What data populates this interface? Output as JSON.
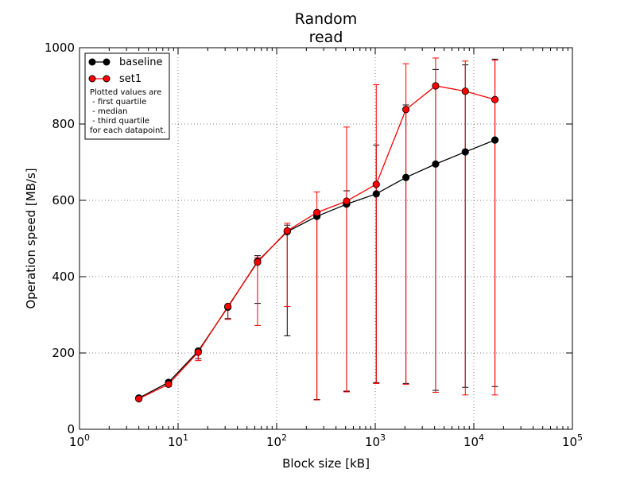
{
  "chart_data": {
    "type": "line",
    "title_lines": [
      "Random",
      "read"
    ],
    "xlabel": "Block size [kB]",
    "ylabel": "Operation speed [MB/s]",
    "x_scale": "log",
    "xlim": [
      1,
      100000
    ],
    "ylim": [
      0,
      1000
    ],
    "x_ticks": [
      {
        "value": 1,
        "base": "10",
        "exp": "0"
      },
      {
        "value": 10,
        "base": "10",
        "exp": "1"
      },
      {
        "value": 100,
        "base": "10",
        "exp": "2"
      },
      {
        "value": 1000,
        "base": "10",
        "exp": "3"
      },
      {
        "value": 10000,
        "base": "10",
        "exp": "4"
      },
      {
        "value": 100000,
        "base": "10",
        "exp": "5"
      }
    ],
    "y_ticks": [
      0,
      200,
      400,
      600,
      800,
      1000
    ],
    "grid": true,
    "legend_position": "top-left",
    "series": [
      {
        "name": "baseline",
        "color": "#000000",
        "points": [
          {
            "x": 4,
            "y": 82,
            "low": 78,
            "high": 86
          },
          {
            "x": 8,
            "y": 123,
            "low": 115,
            "high": 128
          },
          {
            "x": 16,
            "y": 205,
            "low": 185,
            "high": 210
          },
          {
            "x": 32,
            "y": 320,
            "low": 290,
            "high": 325
          },
          {
            "x": 64,
            "y": 440,
            "low": 330,
            "high": 455
          },
          {
            "x": 128,
            "y": 518,
            "low": 245,
            "high": 535
          },
          {
            "x": 256,
            "y": 558,
            "low": 78,
            "high": 570
          },
          {
            "x": 512,
            "y": 590,
            "low": 100,
            "high": 625
          },
          {
            "x": 1024,
            "y": 617,
            "low": 122,
            "high": 745
          },
          {
            "x": 2048,
            "y": 660,
            "low": 120,
            "high": 850
          },
          {
            "x": 4096,
            "y": 695,
            "low": 102,
            "high": 943
          },
          {
            "x": 8192,
            "y": 727,
            "low": 110,
            "high": 955
          },
          {
            "x": 16384,
            "y": 758,
            "low": 112,
            "high": 970
          }
        ]
      },
      {
        "name": "set1",
        "color": "#ff0000",
        "points": [
          {
            "x": 4,
            "y": 80,
            "low": 76,
            "high": 84
          },
          {
            "x": 8,
            "y": 118,
            "low": 112,
            "high": 122
          },
          {
            "x": 16,
            "y": 202,
            "low": 180,
            "high": 207
          },
          {
            "x": 32,
            "y": 322,
            "low": 288,
            "high": 326
          },
          {
            "x": 64,
            "y": 438,
            "low": 272,
            "high": 450
          },
          {
            "x": 128,
            "y": 520,
            "low": 322,
            "high": 540
          },
          {
            "x": 256,
            "y": 568,
            "low": 77,
            "high": 622
          },
          {
            "x": 512,
            "y": 598,
            "low": 98,
            "high": 792
          },
          {
            "x": 1024,
            "y": 642,
            "low": 120,
            "high": 903
          },
          {
            "x": 2048,
            "y": 838,
            "low": 118,
            "high": 958
          },
          {
            "x": 4096,
            "y": 900,
            "low": 97,
            "high": 973
          },
          {
            "x": 8192,
            "y": 886,
            "low": 90,
            "high": 965
          },
          {
            "x": 16384,
            "y": 864,
            "low": 90,
            "high": 967
          }
        ]
      }
    ],
    "legend_note_lines": [
      "Plotted values are",
      " - first quartile",
      " - median",
      " - third quartile",
      "for each datapoint."
    ]
  }
}
